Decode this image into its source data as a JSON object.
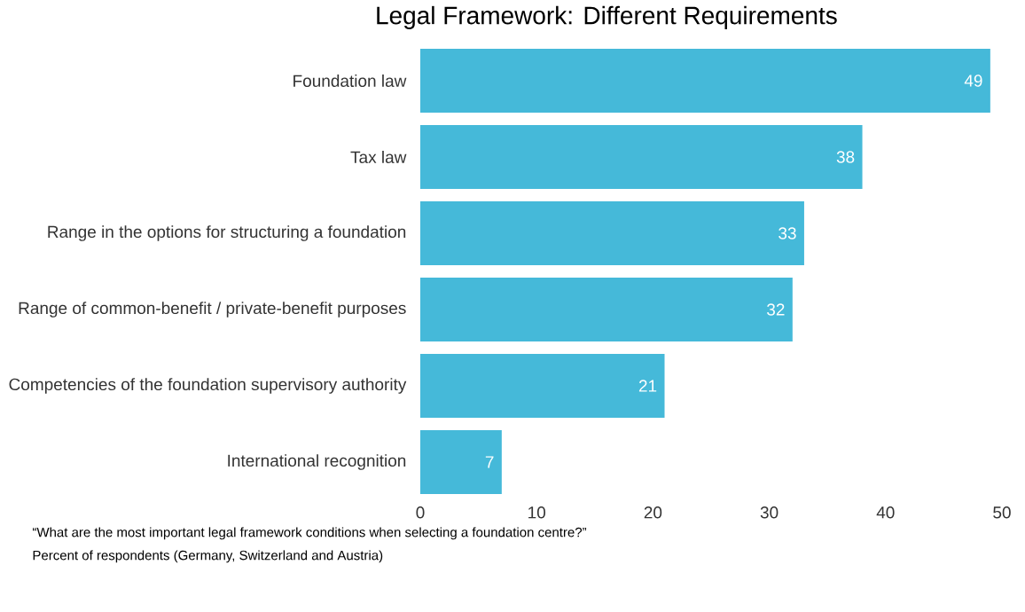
{
  "chart_data": {
    "type": "bar",
    "orientation": "horizontal",
    "title": "Legal Framework: Different Requirements",
    "categories": [
      "Foundation law",
      "Tax law",
      "Range in the options for structuring a foundation",
      "Range of common-benefit / private-benefit purposes",
      "Competencies of the foundation supervisory authority",
      "International recognition"
    ],
    "values": [
      49,
      38,
      33,
      32,
      21,
      7
    ],
    "color": "#45b9d9",
    "data_labels": true,
    "xlim": [
      0,
      50
    ],
    "xticks": [
      0,
      10,
      20,
      30,
      40,
      50
    ],
    "annotations": [
      "“What are the most important legal framework conditions when selecting a foundation centre?”",
      "Percent of respondents (Germany, Switzerland and Austria)"
    ]
  }
}
